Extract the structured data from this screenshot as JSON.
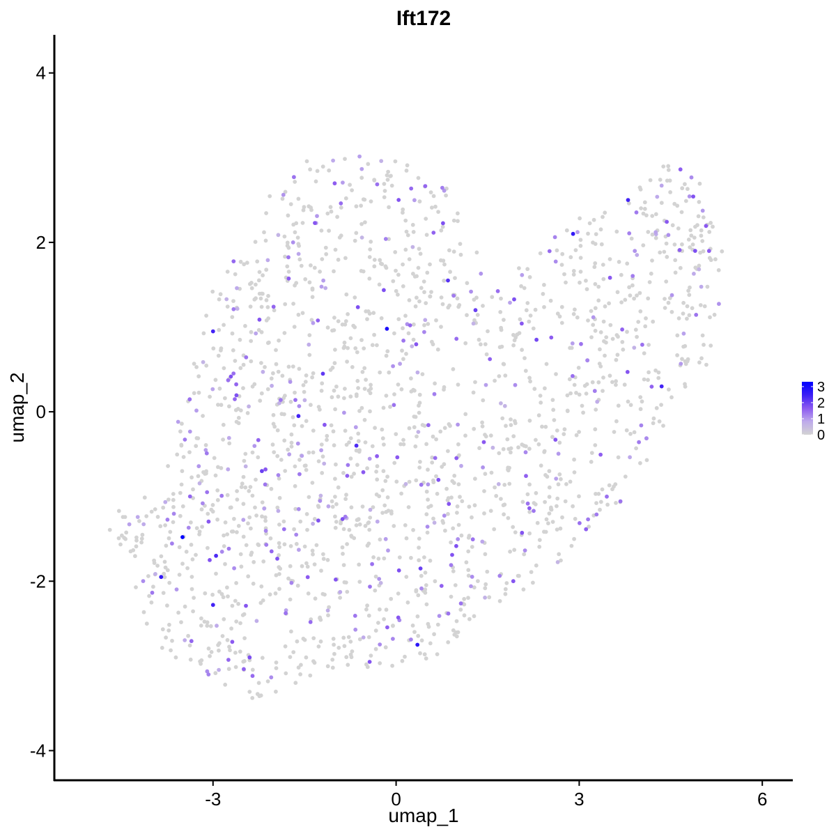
{
  "chart_data": {
    "type": "scatter",
    "title": "Ift172",
    "xlabel": "umap_1",
    "ylabel": "umap_2",
    "xlim": [
      -5.6,
      6.5
    ],
    "ylim": [
      -4.35,
      4.45
    ],
    "xticks": [
      -3,
      0,
      3,
      6
    ],
    "yticks": [
      -4,
      -2,
      0,
      2,
      4
    ],
    "xtick_labels": [
      "-3",
      "0",
      "3",
      "6"
    ],
    "ytick_labels": [
      "-4",
      "-2",
      "0",
      "2",
      "4"
    ],
    "grid": false,
    "legend": {
      "placement": "right",
      "type": "continuous color scale",
      "ticks": [
        0,
        1,
        2,
        3
      ],
      "tick_labels": [
        "0",
        "1",
        "2",
        "3"
      ],
      "low_color": "#d3d3d3",
      "high_color": "#0000ff",
      "max_value": 3.3
    },
    "point_count_approx": 1850,
    "cloud": {
      "description_free_outline_points": [
        [
          -4.8,
          -1.25
        ],
        [
          -4.4,
          -1.8
        ],
        [
          -4.2,
          -2.4
        ],
        [
          -3.8,
          -2.9
        ],
        [
          -3.3,
          -3.05
        ],
        [
          -2.6,
          -3.35
        ],
        [
          -2.25,
          -3.45
        ],
        [
          -1.9,
          -3.3
        ],
        [
          -1.4,
          -3.15
        ],
        [
          -0.8,
          -3.0
        ],
        [
          -0.1,
          -3.05
        ],
        [
          0.6,
          -2.9
        ],
        [
          1.2,
          -2.6
        ],
        [
          1.9,
          -2.2
        ],
        [
          2.6,
          -1.85
        ],
        [
          3.2,
          -1.35
        ],
        [
          3.7,
          -1.05
        ],
        [
          4.1,
          -0.6
        ],
        [
          4.6,
          -0.1
        ],
        [
          5.05,
          0.45
        ],
        [
          5.3,
          1.2
        ],
        [
          5.35,
          1.95
        ],
        [
          5.2,
          2.5
        ],
        [
          4.8,
          2.85
        ],
        [
          4.4,
          3.0
        ],
        [
          3.85,
          2.55
        ],
        [
          3.3,
          2.45
        ],
        [
          2.7,
          2.15
        ],
        [
          2.15,
          1.8
        ],
        [
          1.6,
          1.45
        ],
        [
          1.2,
          2.2
        ],
        [
          0.8,
          2.7
        ],
        [
          0.2,
          2.95
        ],
        [
          -0.5,
          3.05
        ],
        [
          -1.1,
          3.0
        ],
        [
          -1.6,
          2.95
        ],
        [
          -2.1,
          2.6
        ],
        [
          -2.5,
          2.05
        ],
        [
          -2.95,
          1.6
        ],
        [
          -3.25,
          0.9
        ],
        [
          -3.45,
          0.2
        ],
        [
          -3.75,
          -0.5
        ],
        [
          -4.1,
          -0.9
        ],
        [
          -4.6,
          -1.1
        ]
      ],
      "density_holes": [
        [
          0.8,
          0.3
        ],
        [
          2.6,
          0.6
        ],
        [
          3.2,
          -0.5
        ]
      ]
    },
    "highlighted_points": [
      {
        "x": -3.5,
        "y": -1.48,
        "value": 3.3
      },
      {
        "x": -0.15,
        "y": 0.98,
        "value": 2.9
      },
      {
        "x": 2.9,
        "y": 2.1,
        "value": 2.6
      },
      {
        "x": -3.0,
        "y": 0.95,
        "value": 2.4
      },
      {
        "x": 0.35,
        "y": -2.75,
        "value": 2.7
      },
      {
        "x": -3.85,
        "y": -1.95,
        "value": 2.6
      },
      {
        "x": -2.95,
        "y": -1.7,
        "value": 2.3
      },
      {
        "x": -3.0,
        "y": -2.28,
        "value": 2.4
      },
      {
        "x": -1.6,
        "y": -0.05,
        "value": 2.4
      },
      {
        "x": -0.65,
        "y": -0.4,
        "value": 2.3
      },
      {
        "x": 4.35,
        "y": 0.3,
        "value": 2.4
      },
      {
        "x": 3.8,
        "y": 2.5,
        "value": 2.4
      },
      {
        "x": 0.85,
        "y": 1.55,
        "value": 2.2
      },
      {
        "x": 1.3,
        "y": 1.2,
        "value": 2.0
      },
      {
        "x": -1.2,
        "y": 0.45,
        "value": 2.1
      },
      {
        "x": -2.2,
        "y": -0.7,
        "value": 2.0
      },
      {
        "x": 0.4,
        "y": -1.85,
        "value": 2.0
      },
      {
        "x": 2.3,
        "y": 0.85,
        "value": 1.9
      },
      {
        "x": 4.9,
        "y": 1.9,
        "value": 1.8
      },
      {
        "x": -2.4,
        "y": -2.9,
        "value": 1.8
      }
    ],
    "seed": 172
  }
}
